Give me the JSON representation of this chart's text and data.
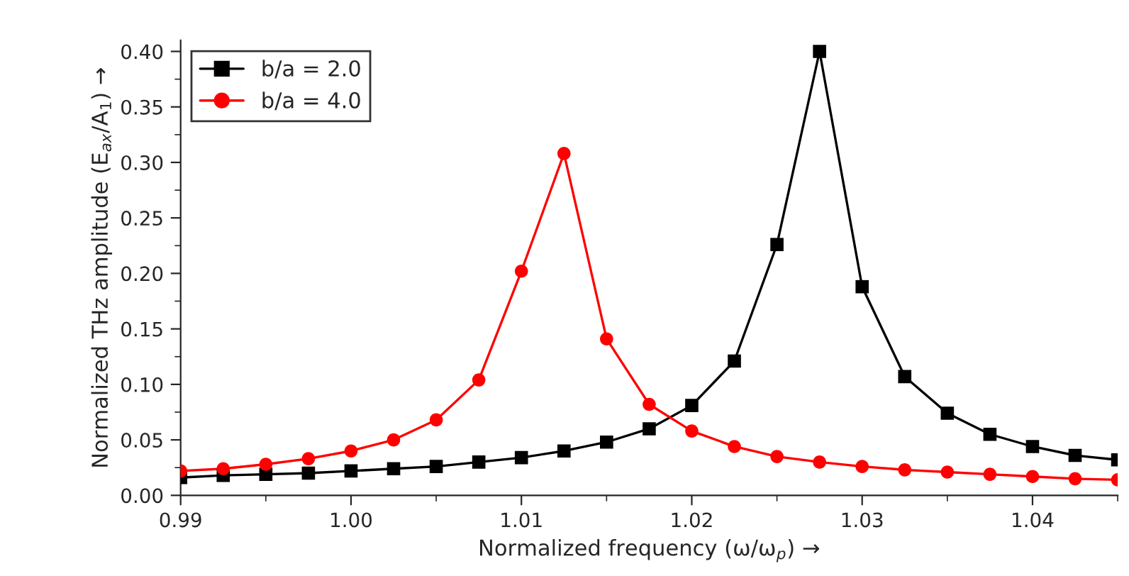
{
  "chart_data": {
    "type": "line",
    "xlabel": "Normalized frequency (ω/ω$_{p}$) →",
    "ylabel": "Normalized THz amplitude (E$_{ax}$/A$_{1}$) →",
    "x": [
      0.99,
      0.9925,
      0.995,
      0.9975,
      1.0,
      1.0025,
      1.005,
      1.0075,
      1.01,
      1.0125,
      1.015,
      1.0175,
      1.02,
      1.0225,
      1.025,
      1.0275,
      1.03,
      1.0325,
      1.035,
      1.0375,
      1.04,
      1.0425,
      1.045
    ],
    "series": [
      {
        "name": "b/a = 2.0",
        "color": "#000000",
        "marker": "square",
        "values": [
          0.016,
          0.018,
          0.019,
          0.02,
          0.022,
          0.024,
          0.026,
          0.03,
          0.034,
          0.04,
          0.048,
          0.06,
          0.081,
          0.121,
          0.226,
          0.4,
          0.188,
          0.107,
          0.074,
          0.055,
          0.044,
          0.036,
          0.032
        ]
      },
      {
        "name": "b/a = 4.0",
        "color": "#ff0000",
        "marker": "circle",
        "values": [
          0.022,
          0.024,
          0.028,
          0.033,
          0.04,
          0.05,
          0.068,
          0.104,
          0.202,
          0.308,
          0.141,
          0.082,
          0.058,
          0.044,
          0.035,
          0.03,
          0.026,
          0.023,
          0.021,
          0.019,
          0.017,
          0.015,
          0.014
        ]
      }
    ],
    "xlim": [
      0.99,
      1.045
    ],
    "xticks": [
      0.99,
      {
        "value": 1.0,
        "label": "1.00"
      },
      1.01,
      1.02,
      1.03,
      1.04
    ],
    "ylim": [
      0.0,
      0.41
    ],
    "yticks": [
      {
        "value": 0.0,
        "label": "0.00"
      },
      0.05,
      {
        "value": 0.1,
        "label": "0.10"
      },
      0.15,
      {
        "value": 0.2,
        "label": "0.20"
      },
      0.25,
      {
        "value": 0.3,
        "label": "0.30"
      },
      0.35,
      {
        "value": 0.4,
        "label": "0.40"
      }
    ],
    "legend": "top left",
    "line_style": "solid",
    "grid": false
  }
}
